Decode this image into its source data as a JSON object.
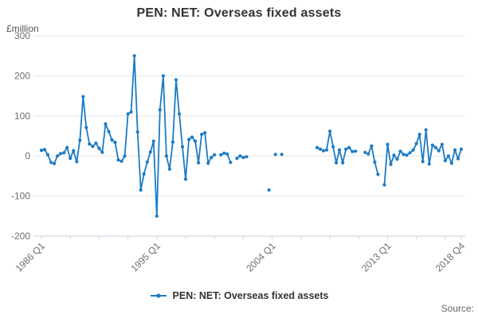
{
  "header": {
    "title": "PEN: NET: Overseas fixed assets"
  },
  "legend": {
    "label": "PEN: NET: Overseas fixed assets"
  },
  "footer": {
    "source_label": "Source:"
  },
  "colors": {
    "line": "#1d7bc4",
    "grid": "#e6e6e6",
    "axis": "#c9d3e0",
    "title_text": "#333333",
    "tick_text": "#6e6e6e",
    "unit_text": "#555555",
    "source_text": "#666666"
  },
  "chart_data": {
    "type": "line",
    "title": "PEN: NET: Overseas fixed assets",
    "y_unit_label": "£million",
    "xlabel": "",
    "ylabel": "£million",
    "ylim": [
      -200,
      300
    ],
    "y_ticks": [
      300,
      200,
      100,
      0,
      -100,
      -200
    ],
    "grid": "horizontal",
    "legend_position": "bottom",
    "x_start": "1986 Q1",
    "x_end": "2018 Q4",
    "x_frequency": "quarterly",
    "n_points": 132,
    "x_tick_labels": [
      {
        "index": 0,
        "label": "1986 Q1"
      },
      {
        "index": 36,
        "label": "1995 Q1"
      },
      {
        "index": 72,
        "label": "2004 Q1"
      },
      {
        "index": 108,
        "label": "2013 Q1"
      },
      {
        "index": 131,
        "label": "2018 Q4"
      }
    ],
    "minor_tick_every_quarters": 9,
    "series": [
      {
        "name": "PEN: NET: Overseas fixed assets",
        "color": "#1d7bc4",
        "values": [
          14,
          16,
          3,
          -16,
          -19,
          0,
          6,
          8,
          21,
          -6,
          13,
          -14,
          39,
          148,
          71,
          30,
          24,
          32,
          19,
          9,
          80,
          61,
          40,
          34,
          -10,
          -13,
          0,
          105,
          110,
          250,
          60,
          -85,
          -45,
          -15,
          10,
          37,
          -150,
          115,
          200,
          0,
          -33,
          35,
          190,
          105,
          23,
          -58,
          41,
          47,
          37,
          -17,
          54,
          58,
          -18,
          -4,
          3,
          null,
          3,
          7,
          5,
          -16,
          null,
          -6,
          0,
          -4,
          -2,
          null,
          null,
          null,
          null,
          null,
          null,
          -85,
          null,
          4,
          null,
          4,
          null,
          null,
          null,
          null,
          null,
          null,
          null,
          null,
          null,
          null,
          21,
          17,
          13,
          15,
          62,
          23,
          -17,
          15,
          -17,
          17,
          21,
          11,
          12,
          null,
          null,
          9,
          5,
          25,
          -15,
          -46,
          null,
          -72,
          29,
          -21,
          2,
          -8,
          12,
          4,
          2,
          8,
          15,
          31,
          54,
          -14,
          65,
          -20,
          27,
          21,
          13,
          29,
          -12,
          0,
          -18,
          15,
          -7,
          17
        ]
      }
    ]
  }
}
